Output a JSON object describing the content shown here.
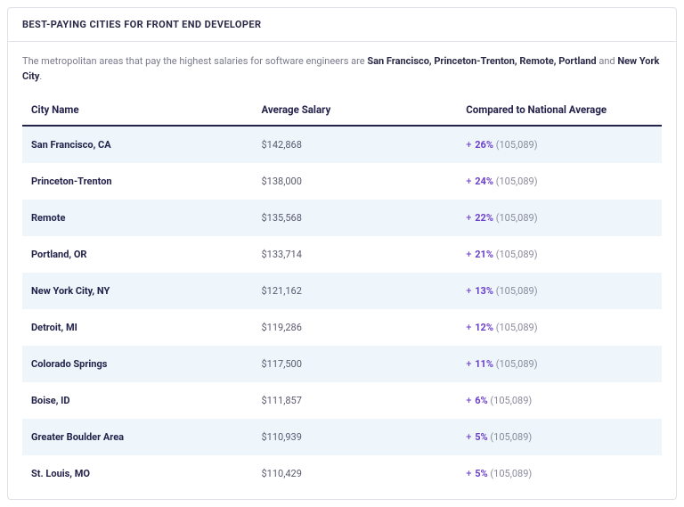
{
  "card": {
    "title": "BEST-PAYING CITIES FOR FRONT END DEVELOPER",
    "intro_prefix": "The metropolitan areas that pay the highest salaries for software engineers are ",
    "intro_bold": "San Francisco, Princeton-Trenton, Remote, Portland",
    "intro_join": " and ",
    "intro_bold2": "New York City",
    "intro_suffix": "."
  },
  "table": {
    "columns": [
      "City Name",
      "Average Salary",
      "Compared to National Average"
    ],
    "national_average": "105,089",
    "styling": {
      "header_color": "#23224a",
      "header_border": "2px solid #23224a",
      "row_alt_bg": "#eef6fb",
      "row_bg": "#ffffff",
      "city_color": "#23224a",
      "salary_color": "#5a5a70",
      "plus_color": "#6b3fc9",
      "pct_color": "#6b3fc9",
      "base_color": "#8a8a9c",
      "font_size_row": 11,
      "font_size_header": 11.5
    },
    "rows": [
      {
        "city": "San Francisco, CA",
        "salary": "$142,868",
        "pct": "26%"
      },
      {
        "city": "Princeton-Trenton",
        "salary": "$138,000",
        "pct": "24%"
      },
      {
        "city": "Remote",
        "salary": "$135,568",
        "pct": "22%"
      },
      {
        "city": "Portland, OR",
        "salary": "$133,714",
        "pct": "21%"
      },
      {
        "city": "New York City, NY",
        "salary": "$121,162",
        "pct": "13%"
      },
      {
        "city": "Detroit, MI",
        "salary": "$119,286",
        "pct": "12%"
      },
      {
        "city": "Colorado Springs",
        "salary": "$117,500",
        "pct": "11%"
      },
      {
        "city": "Boise, ID",
        "salary": "$111,857",
        "pct": "6%"
      },
      {
        "city": "Greater Boulder Area",
        "salary": "$110,939",
        "pct": "5%"
      },
      {
        "city": "St. Louis, MO",
        "salary": "$110,429",
        "pct": "5%"
      }
    ]
  }
}
